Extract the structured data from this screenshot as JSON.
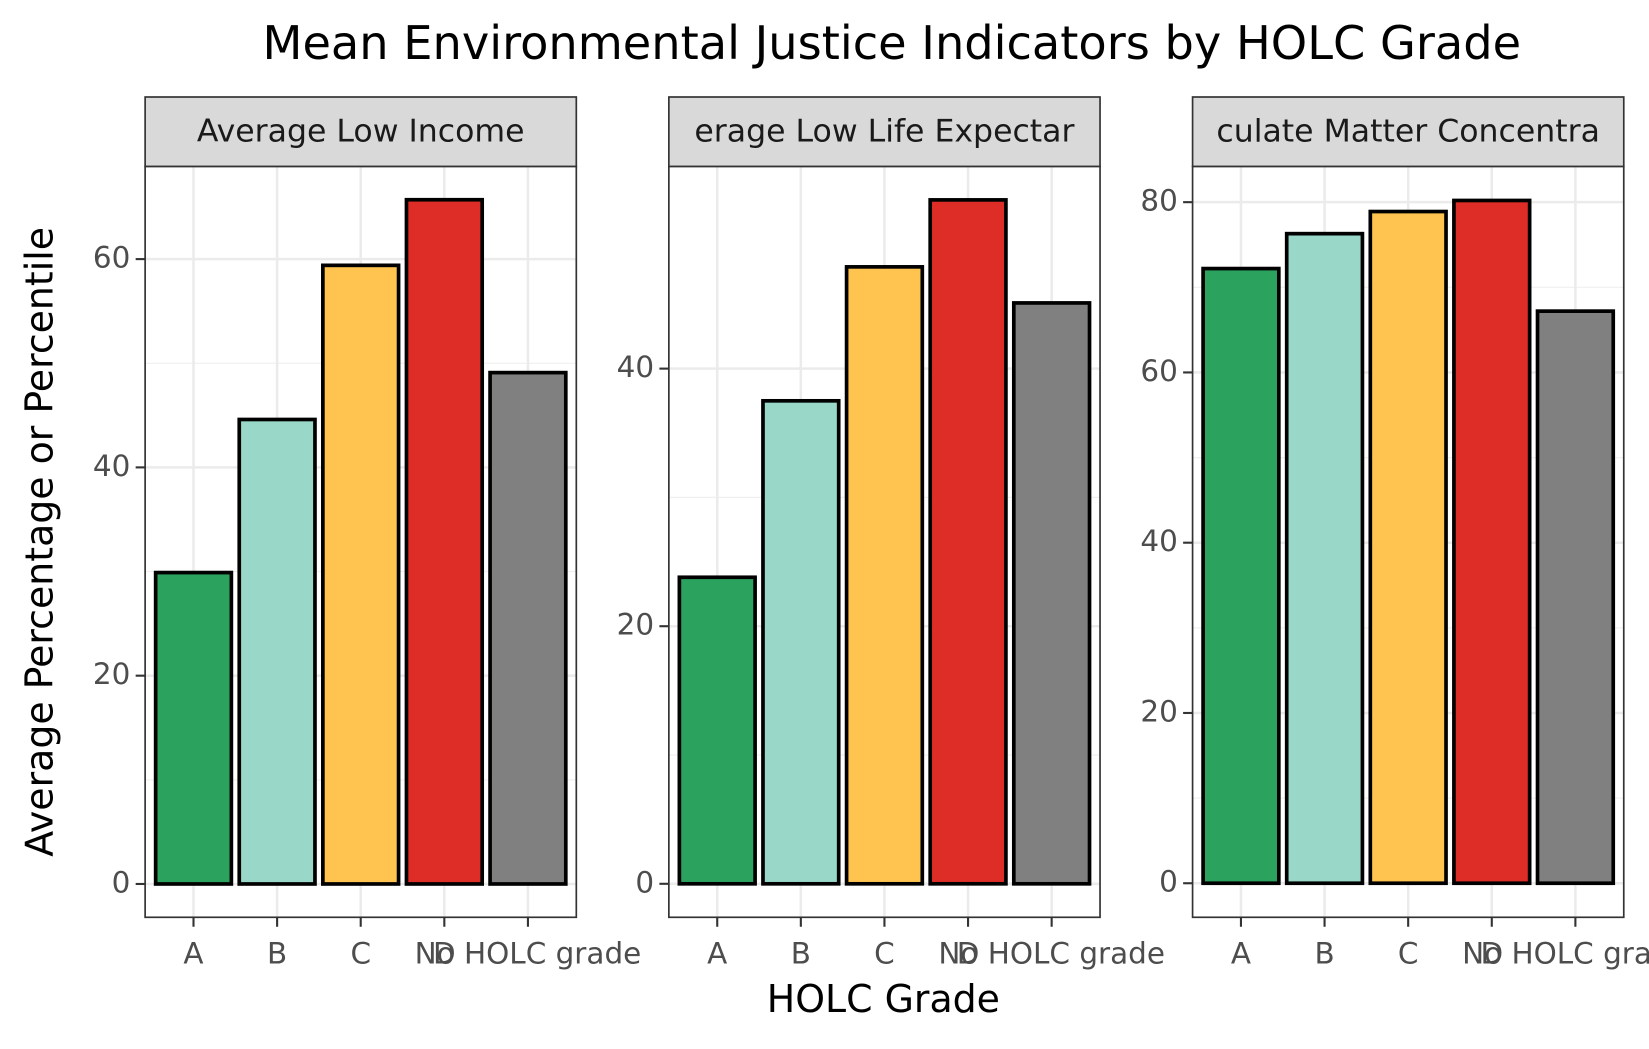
{
  "title": "Mean Environmental Justice Indicators by HOLC Grade",
  "xlabel": "HOLC Grade",
  "ylabel": "Average Percentage or Percentile",
  "chart_data": [
    {
      "type": "bar",
      "title": "Average Low Income",
      "categories": [
        "A",
        "B",
        "C",
        "D",
        "No HOLC grade"
      ],
      "values": [
        29.9,
        44.6,
        59.4,
        65.7,
        49.1
      ],
      "colors": [
        "#2ca25f",
        "#99d8c9",
        "#fec44f",
        "#de2d26",
        "#808080"
      ],
      "ylim": [
        -3.2,
        68.9
      ],
      "yticks": [
        0,
        20,
        40,
        60
      ],
      "grid": true
    },
    {
      "type": "bar",
      "title": "erage Low Life Expectar",
      "categories": [
        "A",
        "B",
        "C",
        "D",
        "No HOLC grade"
      ],
      "values": [
        23.8,
        37.5,
        47.9,
        53.1,
        45.1
      ],
      "colors": [
        "#2ca25f",
        "#99d8c9",
        "#fec44f",
        "#de2d26",
        "#808080"
      ],
      "ylim": [
        -2.6,
        55.7
      ],
      "yticks": [
        0,
        20,
        40
      ],
      "grid": true
    },
    {
      "type": "bar",
      "title": "culate Matter Concentra",
      "categories": [
        "A",
        "B",
        "C",
        "D",
        "No HOLC grade"
      ],
      "values": [
        72.2,
        76.3,
        78.9,
        80.2,
        67.2
      ],
      "colors": [
        "#2ca25f",
        "#99d8c9",
        "#fec44f",
        "#de2d26",
        "#808080"
      ],
      "ylim": [
        -4.0,
        84.2
      ],
      "yticks": [
        0,
        20,
        40,
        60,
        80
      ],
      "grid": true
    }
  ]
}
